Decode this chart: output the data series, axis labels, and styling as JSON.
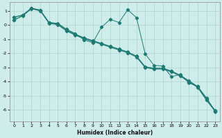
{
  "xlabel": "Humidex (Indice chaleur)",
  "xlim": [
    -0.5,
    23.5
  ],
  "ylim": [
    -6.8,
    1.6
  ],
  "yticks": [
    1,
    0,
    -1,
    -2,
    -3,
    -4,
    -5,
    -6
  ],
  "xticks": [
    0,
    1,
    2,
    3,
    4,
    5,
    6,
    7,
    8,
    9,
    10,
    11,
    12,
    13,
    14,
    15,
    16,
    17,
    18,
    19,
    20,
    21,
    22,
    23
  ],
  "bg_color": "#ceecea",
  "grid_color": "#b0d4d0",
  "line_color": "#1e7a72",
  "series": [
    [
      0.55,
      0.72,
      1.2,
      1.05,
      0.18,
      0.08,
      -0.35,
      -0.65,
      -0.9,
      -1.1,
      -1.3,
      -1.5,
      -1.7,
      -1.9,
      -2.2,
      -2.95,
      -3.05,
      -3.05,
      -3.25,
      -3.55,
      -3.95,
      -4.35,
      -5.25,
      -6.05
    ],
    [
      0.55,
      0.7,
      1.18,
      1.03,
      0.16,
      0.06,
      -0.37,
      -0.67,
      -0.92,
      -1.12,
      -1.32,
      -1.52,
      -1.72,
      -1.92,
      -2.22,
      -2.97,
      -3.07,
      -3.07,
      -3.27,
      -3.57,
      -3.97,
      -4.37,
      -5.27,
      -6.07
    ],
    [
      0.35,
      0.65,
      1.15,
      1.0,
      0.12,
      0.02,
      -0.42,
      -0.72,
      -0.97,
      -1.17,
      -1.37,
      -1.57,
      -1.77,
      -1.97,
      -2.27,
      -3.02,
      -3.12,
      -3.12,
      -3.32,
      -3.62,
      -4.02,
      -4.42,
      -5.32,
      -6.12
    ],
    [
      0.35,
      0.68,
      1.18,
      1.05,
      0.18,
      0.12,
      -0.3,
      -0.6,
      -1.05,
      -1.25,
      -0.15,
      0.4,
      0.18,
      1.08,
      0.52,
      -2.05,
      -2.85,
      -2.9,
      -3.65,
      -3.5,
      -4.1,
      -4.35,
      -5.15,
      -6.1
    ]
  ]
}
